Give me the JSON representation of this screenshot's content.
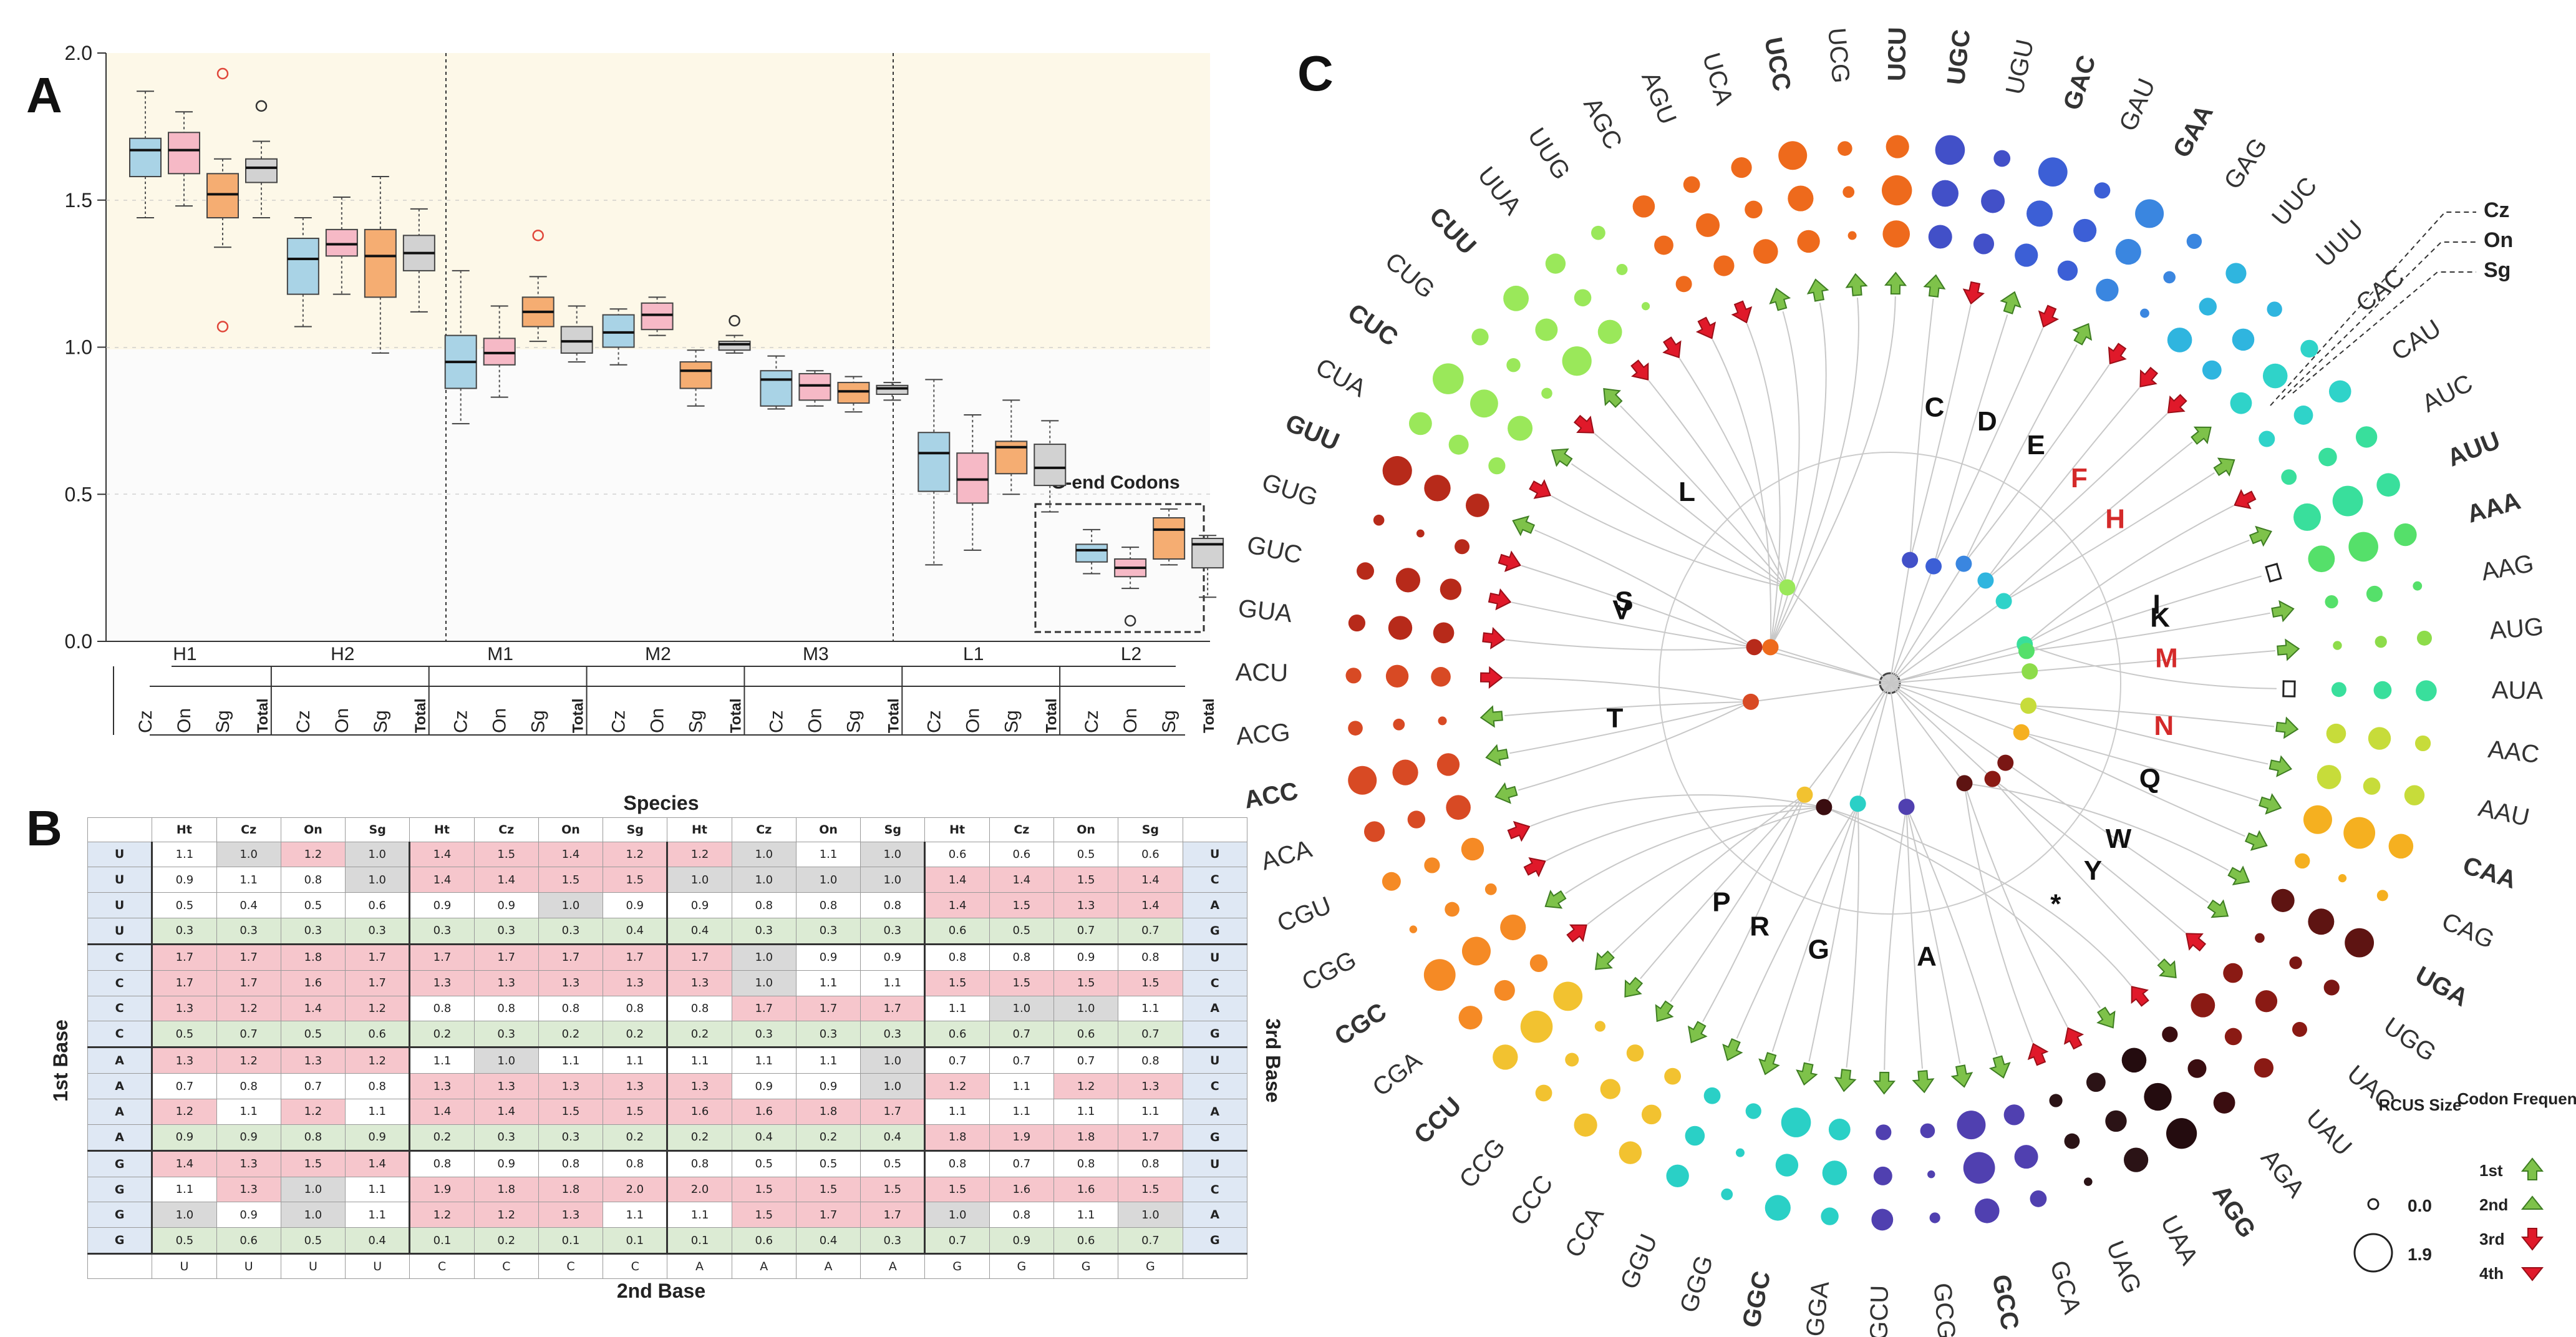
{
  "panel_letters": [
    "A",
    "B",
    "C"
  ],
  "chart_data": [
    {
      "type": "box",
      "panel": "A",
      "y_ticks": [
        "0.0",
        "0.5",
        "1.0",
        "1.5",
        "2.0"
      ],
      "ylim": [
        0,
        2
      ],
      "groups": [
        "H1",
        "H2",
        "M1",
        "M2",
        "M3",
        "L1",
        "L2"
      ],
      "sub_labels": [
        "Cz",
        "On",
        "Sg",
        "Total"
      ],
      "annotation": "G-end Codons",
      "colors": {
        "Cz": "#a9d3e6",
        "On": "#f6b9c6",
        "Sg": "#f5ad72",
        "Total": "#d2d2d2"
      },
      "boxes": [
        {
          "group": "H1",
          "sub": "Cz",
          "min": 1.44,
          "q1": 1.58,
          "med": 1.67,
          "q3": 1.71,
          "max": 1.87
        },
        {
          "group": "H1",
          "sub": "On",
          "min": 1.48,
          "q1": 1.59,
          "med": 1.67,
          "q3": 1.73,
          "max": 1.8
        },
        {
          "group": "H1",
          "sub": "Sg",
          "min": 1.34,
          "q1": 1.44,
          "med": 1.52,
          "q3": 1.59,
          "max": 1.64,
          "outliers": [
            1.93,
            1.07
          ]
        },
        {
          "group": "H1",
          "sub": "Total",
          "min": 1.44,
          "q1": 1.56,
          "med": 1.61,
          "q3": 1.64,
          "max": 1.7,
          "outliers": [
            1.82
          ]
        },
        {
          "group": "H2",
          "sub": "Cz",
          "min": 1.07,
          "q1": 1.18,
          "med": 1.3,
          "q3": 1.37,
          "max": 1.44
        },
        {
          "group": "H2",
          "sub": "On",
          "min": 1.18,
          "q1": 1.31,
          "med": 1.35,
          "q3": 1.4,
          "max": 1.51
        },
        {
          "group": "H2",
          "sub": "Sg",
          "min": 0.98,
          "q1": 1.17,
          "med": 1.31,
          "q3": 1.4,
          "max": 1.58
        },
        {
          "group": "H2",
          "sub": "Total",
          "min": 1.12,
          "q1": 1.26,
          "med": 1.32,
          "q3": 1.38,
          "max": 1.47
        },
        {
          "group": "M1",
          "sub": "Cz",
          "min": 0.74,
          "q1": 0.86,
          "med": 0.95,
          "q3": 1.04,
          "max": 1.26
        },
        {
          "group": "M1",
          "sub": "On",
          "min": 0.83,
          "q1": 0.94,
          "med": 0.98,
          "q3": 1.03,
          "max": 1.14
        },
        {
          "group": "M1",
          "sub": "Sg",
          "min": 1.02,
          "q1": 1.07,
          "med": 1.12,
          "q3": 1.17,
          "max": 1.24,
          "outliers": [
            1.38
          ]
        },
        {
          "group": "M1",
          "sub": "Total",
          "min": 0.95,
          "q1": 0.98,
          "med": 1.02,
          "q3": 1.07,
          "max": 1.14
        },
        {
          "group": "M2",
          "sub": "Cz",
          "min": 0.94,
          "q1": 1.0,
          "med": 1.05,
          "q3": 1.11,
          "max": 1.13
        },
        {
          "group": "M2",
          "sub": "On",
          "min": 1.04,
          "q1": 1.06,
          "med": 1.11,
          "q3": 1.15,
          "max": 1.17
        },
        {
          "group": "M2",
          "sub": "Sg",
          "min": 0.8,
          "q1": 0.86,
          "med": 0.92,
          "q3": 0.95,
          "max": 0.99
        },
        {
          "group": "M2",
          "sub": "Total",
          "min": 0.98,
          "q1": 0.99,
          "med": 1.01,
          "q3": 1.02,
          "max": 1.04,
          "outliers": [
            1.09
          ]
        },
        {
          "group": "M3",
          "sub": "Cz",
          "min": 0.79,
          "q1": 0.8,
          "med": 0.89,
          "q3": 0.92,
          "max": 0.97
        },
        {
          "group": "M3",
          "sub": "On",
          "min": 0.8,
          "q1": 0.82,
          "med": 0.87,
          "q3": 0.91,
          "max": 0.92
        },
        {
          "group": "M3",
          "sub": "Sg",
          "min": 0.78,
          "q1": 0.81,
          "med": 0.85,
          "q3": 0.88,
          "max": 0.9
        },
        {
          "group": "M3",
          "sub": "Total",
          "min": 0.82,
          "q1": 0.84,
          "med": 0.86,
          "q3": 0.87,
          "max": 0.88
        },
        {
          "group": "L1",
          "sub": "Cz",
          "min": 0.26,
          "q1": 0.51,
          "med": 0.64,
          "q3": 0.71,
          "max": 0.89
        },
        {
          "group": "L1",
          "sub": "On",
          "min": 0.31,
          "q1": 0.47,
          "med": 0.55,
          "q3": 0.64,
          "max": 0.77
        },
        {
          "group": "L1",
          "sub": "Sg",
          "min": 0.5,
          "q1": 0.57,
          "med": 0.66,
          "q3": 0.68,
          "max": 0.82
        },
        {
          "group": "L1",
          "sub": "Total",
          "min": 0.44,
          "q1": 0.53,
          "med": 0.59,
          "q3": 0.67,
          "max": 0.75
        },
        {
          "group": "L2",
          "sub": "Cz",
          "min": 0.23,
          "q1": 0.27,
          "med": 0.31,
          "q3": 0.33,
          "max": 0.38
        },
        {
          "group": "L2",
          "sub": "On",
          "min": 0.18,
          "q1": 0.22,
          "med": 0.25,
          "q3": 0.28,
          "max": 0.32,
          "outliers": [
            0.07
          ]
        },
        {
          "group": "L2",
          "sub": "Sg",
          "min": 0.26,
          "q1": 0.28,
          "med": 0.38,
          "q3": 0.42,
          "max": 0.45
        },
        {
          "group": "L2",
          "sub": "Total",
          "min": 0.15,
          "q1": 0.25,
          "med": 0.33,
          "q3": 0.35,
          "max": 0.36
        }
      ]
    },
    {
      "type": "table",
      "panel": "B",
      "title": "Species",
      "xlabel": "2nd Base",
      "ylabel_left": "1st Base",
      "ylabel_right": "3rd Base",
      "species": [
        "Ht",
        "Cz",
        "On",
        "Sg"
      ],
      "second_base": [
        "U",
        "C",
        "A",
        "G"
      ],
      "rows": [
        {
          "first": "U",
          "third": "U",
          "values": [
            "1.1",
            "1.0",
            "1.2",
            "1.0",
            "1.4",
            "1.5",
            "1.4",
            "1.2",
            "1.2",
            "1.0",
            "1.1",
            "1.0",
            "0.6",
            "0.6",
            "0.5",
            "0.6"
          ]
        },
        {
          "first": "U",
          "third": "C",
          "values": [
            "0.9",
            "1.1",
            "0.8",
            "1.0",
            "1.4",
            "1.4",
            "1.5",
            "1.5",
            "1.0",
            "1.0",
            "1.0",
            "1.0",
            "1.4",
            "1.4",
            "1.5",
            "1.4"
          ]
        },
        {
          "first": "U",
          "third": "A",
          "values": [
            "0.5",
            "0.4",
            "0.5",
            "0.6",
            "0.9",
            "0.9",
            "1.0",
            "0.9",
            "0.9",
            "0.8",
            "0.8",
            "0.8",
            "1.4",
            "1.5",
            "1.3",
            "1.4"
          ]
        },
        {
          "first": "U",
          "third": "G",
          "values": [
            "0.3",
            "0.3",
            "0.3",
            "0.3",
            "0.3",
            "0.3",
            "0.3",
            "0.4",
            "0.4",
            "0.3",
            "0.3",
            "0.3",
            "0.6",
            "0.5",
            "0.7",
            "0.7"
          ]
        },
        {
          "first": "C",
          "third": "U",
          "values": [
            "1.7",
            "1.7",
            "1.8",
            "1.7",
            "1.7",
            "1.7",
            "1.7",
            "1.7",
            "1.7",
            "1.0",
            "0.9",
            "0.9",
            "0.8",
            "0.8",
            "0.9",
            "0.8"
          ]
        },
        {
          "first": "C",
          "third": "C",
          "values": [
            "1.7",
            "1.7",
            "1.6",
            "1.7",
            "1.3",
            "1.3",
            "1.3",
            "1.3",
            "1.3",
            "1.0",
            "1.1",
            "1.1",
            "1.5",
            "1.5",
            "1.5",
            "1.5"
          ]
        },
        {
          "first": "C",
          "third": "A",
          "values": [
            "1.3",
            "1.2",
            "1.4",
            "1.2",
            "0.8",
            "0.8",
            "0.8",
            "0.8",
            "0.8",
            "1.7",
            "1.7",
            "1.7",
            "1.1",
            "1.0",
            "1.0",
            "1.1"
          ]
        },
        {
          "first": "C",
          "third": "G",
          "values": [
            "0.5",
            "0.7",
            "0.5",
            "0.6",
            "0.2",
            "0.3",
            "0.2",
            "0.2",
            "0.2",
            "0.3",
            "0.3",
            "0.3",
            "0.6",
            "0.7",
            "0.6",
            "0.7"
          ]
        },
        {
          "first": "A",
          "third": "U",
          "values": [
            "1.3",
            "1.2",
            "1.3",
            "1.2",
            "1.1",
            "1.0",
            "1.1",
            "1.1",
            "1.1",
            "1.1",
            "1.1",
            "1.0",
            "0.7",
            "0.7",
            "0.7",
            "0.8"
          ]
        },
        {
          "first": "A",
          "third": "C",
          "values": [
            "0.7",
            "0.8",
            "0.7",
            "0.8",
            "1.3",
            "1.3",
            "1.3",
            "1.3",
            "1.3",
            "0.9",
            "0.9",
            "1.0",
            "1.2",
            "1.1",
            "1.2",
            "1.3"
          ]
        },
        {
          "first": "A",
          "third": "A",
          "values": [
            "1.2",
            "1.1",
            "1.2",
            "1.1",
            "1.4",
            "1.4",
            "1.5",
            "1.5",
            "1.6",
            "1.6",
            "1.8",
            "1.7",
            "1.1",
            "1.1",
            "1.1",
            "1.1"
          ]
        },
        {
          "first": "A",
          "third": "G",
          "values": [
            "0.9",
            "0.9",
            "0.8",
            "0.9",
            "0.2",
            "0.3",
            "0.3",
            "0.2",
            "0.2",
            "0.4",
            "0.2",
            "0.4",
            "1.8",
            "1.9",
            "1.8",
            "1.7"
          ]
        },
        {
          "first": "G",
          "third": "U",
          "values": [
            "1.4",
            "1.3",
            "1.5",
            "1.4",
            "0.8",
            "0.9",
            "0.8",
            "0.8",
            "0.8",
            "0.5",
            "0.5",
            "0.5",
            "0.8",
            "0.7",
            "0.8",
            "0.8"
          ]
        },
        {
          "first": "G",
          "third": "C",
          "values": [
            "1.1",
            "1.3",
            "1.0",
            "1.1",
            "1.9",
            "1.8",
            "1.8",
            "2.0",
            "2.0",
            "1.5",
            "1.5",
            "1.5",
            "1.5",
            "1.6",
            "1.6",
            "1.5"
          ]
        },
        {
          "first": "G",
          "third": "A",
          "values": [
            "1.0",
            "0.9",
            "1.0",
            "1.1",
            "1.2",
            "1.2",
            "1.3",
            "1.1",
            "1.1",
            "1.5",
            "1.7",
            "1.7",
            "1.0",
            "0.8",
            "1.1",
            "1.0"
          ]
        },
        {
          "first": "G",
          "third": "G",
          "values": [
            "0.5",
            "0.6",
            "0.5",
            "0.4",
            "0.1",
            "0.2",
            "0.1",
            "0.1",
            "0.1",
            "0.6",
            "0.4",
            "0.3",
            "0.7",
            "0.9",
            "0.6",
            "0.7"
          ]
        }
      ],
      "col_headers": [
        "Ht",
        "Cz",
        "On",
        "Sg",
        "Ht",
        "Cz",
        "On",
        "Sg",
        "Ht",
        "Cz",
        "On",
        "Sg",
        "Ht",
        "Cz",
        "On",
        "Sg"
      ],
      "foot": [
        "U",
        "U",
        "U",
        "U",
        "C",
        "C",
        "C",
        "C",
        "A",
        "A",
        "A",
        "A",
        "G",
        "G",
        "G",
        "G"
      ]
    },
    {
      "type": "radial",
      "panel": "C",
      "ring_legend": [
        "Cz",
        "On",
        "Sg"
      ],
      "amino_acids": [
        "S",
        "C",
        "D",
        "E",
        "F",
        "H",
        "I",
        "K",
        "M",
        "N",
        "Q",
        "W",
        "Y",
        "*",
        "A",
        "G",
        "P",
        "R",
        "T",
        "V",
        "L"
      ],
      "highlighted_amino_acids": [
        "F",
        "H",
        "M",
        "N"
      ],
      "codons": [
        "UCU",
        "UGC",
        "UGU",
        "GAC",
        "GAU",
        "GAA",
        "GAG",
        "UUC",
        "UUU",
        "CAC",
        "CAU",
        "AUC",
        "AUU",
        "AAA",
        "AAG",
        "AUG",
        "AUA",
        "AAC",
        "AAU",
        "CAA",
        "CAG",
        "UGA",
        "UGG",
        "UAC",
        "UAU",
        "AGA",
        "AGG",
        "UAA",
        "UAG",
        "GCA",
        "GCC",
        "GCG",
        "GCU",
        "GGA",
        "GGC",
        "GGG",
        "GGU",
        "CCA",
        "CCC",
        "CCG",
        "CCU",
        "CGA",
        "CGC",
        "CGG",
        "CGU",
        "ACA",
        "ACC",
        "ACG",
        "ACU",
        "GUA",
        "GUC",
        "GUG",
        "GUU",
        "CUA",
        "CUC",
        "CUG",
        "CUU",
        "UUA",
        "UUG",
        "AGC",
        "AGU",
        "UCA",
        "UCC",
        "UCG"
      ],
      "bold_codons": [
        "UCU",
        "UGC",
        "GAC",
        "GAA",
        "AUU",
        "AAA",
        "CAA",
        "UGA",
        "AGG",
        "GCC",
        "GGC",
        "CCU",
        "CGC",
        "ACC",
        "GUU",
        "CUC",
        "CUU",
        "UCC"
      ],
      "legend": {
        "size_title": "RCUS Size",
        "size_values": [
          "0.0",
          "1.9"
        ],
        "freq_title": "Codon Frequency",
        "freq_items": [
          "1st",
          "2nd",
          "3rd",
          "4th"
        ]
      }
    }
  ]
}
